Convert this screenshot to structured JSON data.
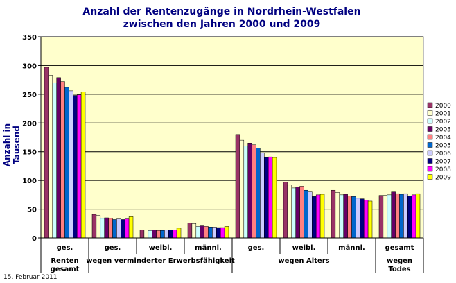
{
  "colors": [
    "#993366",
    "#ffffcc",
    "#ccffff",
    "#660066",
    "#ff8080",
    "#0066cc",
    "#ccccff",
    "#000080",
    "#ff00ff",
    "#ffff00"
  ],
  "footer_date": "15. Februar 2011",
  "chart_data": {
    "type": "bar",
    "title": [
      "Anzahl der Rentenzugänge in Nordrhein-Westfalen",
      "zwischen den Jahren 2000 und 2009"
    ],
    "ylabel": "Anzahl in Tausend",
    "xlabel": "",
    "ylim": [
      0,
      350
    ],
    "yticks": [
      0,
      50,
      100,
      150,
      200,
      250,
      300,
      350
    ],
    "grid": true,
    "legend": "right",
    "categories": [
      "Renten gesamt ges.",
      "wegen verminderter Erwerbsfähigkeit ges.",
      "wegen verminderter Erwerbsfähigkeit weibl.",
      "wegen verminderter Erwerbsfähigkeit männl.",
      "wegen Alters ges.",
      "wegen Alters weibl.",
      "wegen Alters männl.",
      "wegen Todes gesamt"
    ],
    "category_labels": [
      "ges.",
      "ges.",
      "weibl.",
      "männl.",
      "ges.",
      "weibl.",
      "männl.",
      "gesamt"
    ],
    "groups": [
      {
        "label": [
          "Renten",
          "gesamt"
        ],
        "span": [
          0,
          0
        ]
      },
      {
        "label": [
          "wegen verminderter Erwerbsfähigkeit"
        ],
        "span": [
          1,
          3
        ]
      },
      {
        "label": [
          "wegen Alters"
        ],
        "span": [
          4,
          6
        ]
      },
      {
        "label": [
          "wegen",
          "Todes"
        ],
        "span": [
          7,
          7
        ]
      }
    ],
    "series": [
      {
        "name": "2000",
        "values": [
          297,
          41,
          14,
          26,
          180,
          97,
          83,
          74
        ]
      },
      {
        "name": "2001",
        "values": [
          283,
          39,
          14,
          25,
          170,
          92,
          79,
          74
        ]
      },
      {
        "name": "2002",
        "values": [
          270,
          34,
          13,
          20,
          160,
          87,
          75,
          75
        ]
      },
      {
        "name": "2003",
        "values": [
          279,
          35,
          14,
          21,
          165,
          89,
          76,
          80
        ]
      },
      {
        "name": "2004",
        "values": [
          272,
          34,
          13,
          20,
          162,
          90,
          73,
          77
        ]
      },
      {
        "name": "2005",
        "values": [
          262,
          32,
          13,
          19,
          156,
          83,
          72,
          76
        ]
      },
      {
        "name": "2006",
        "values": [
          256,
          33,
          14,
          19,
          148,
          80,
          69,
          77
        ]
      },
      {
        "name": "2007",
        "values": [
          248,
          32,
          14,
          18,
          140,
          72,
          68,
          73
        ]
      },
      {
        "name": "2008",
        "values": [
          249,
          33,
          14,
          18,
          141,
          75,
          66,
          75
        ]
      },
      {
        "name": "2009",
        "values": [
          254,
          37,
          17,
          20,
          140,
          76,
          64,
          77
        ]
      }
    ]
  }
}
